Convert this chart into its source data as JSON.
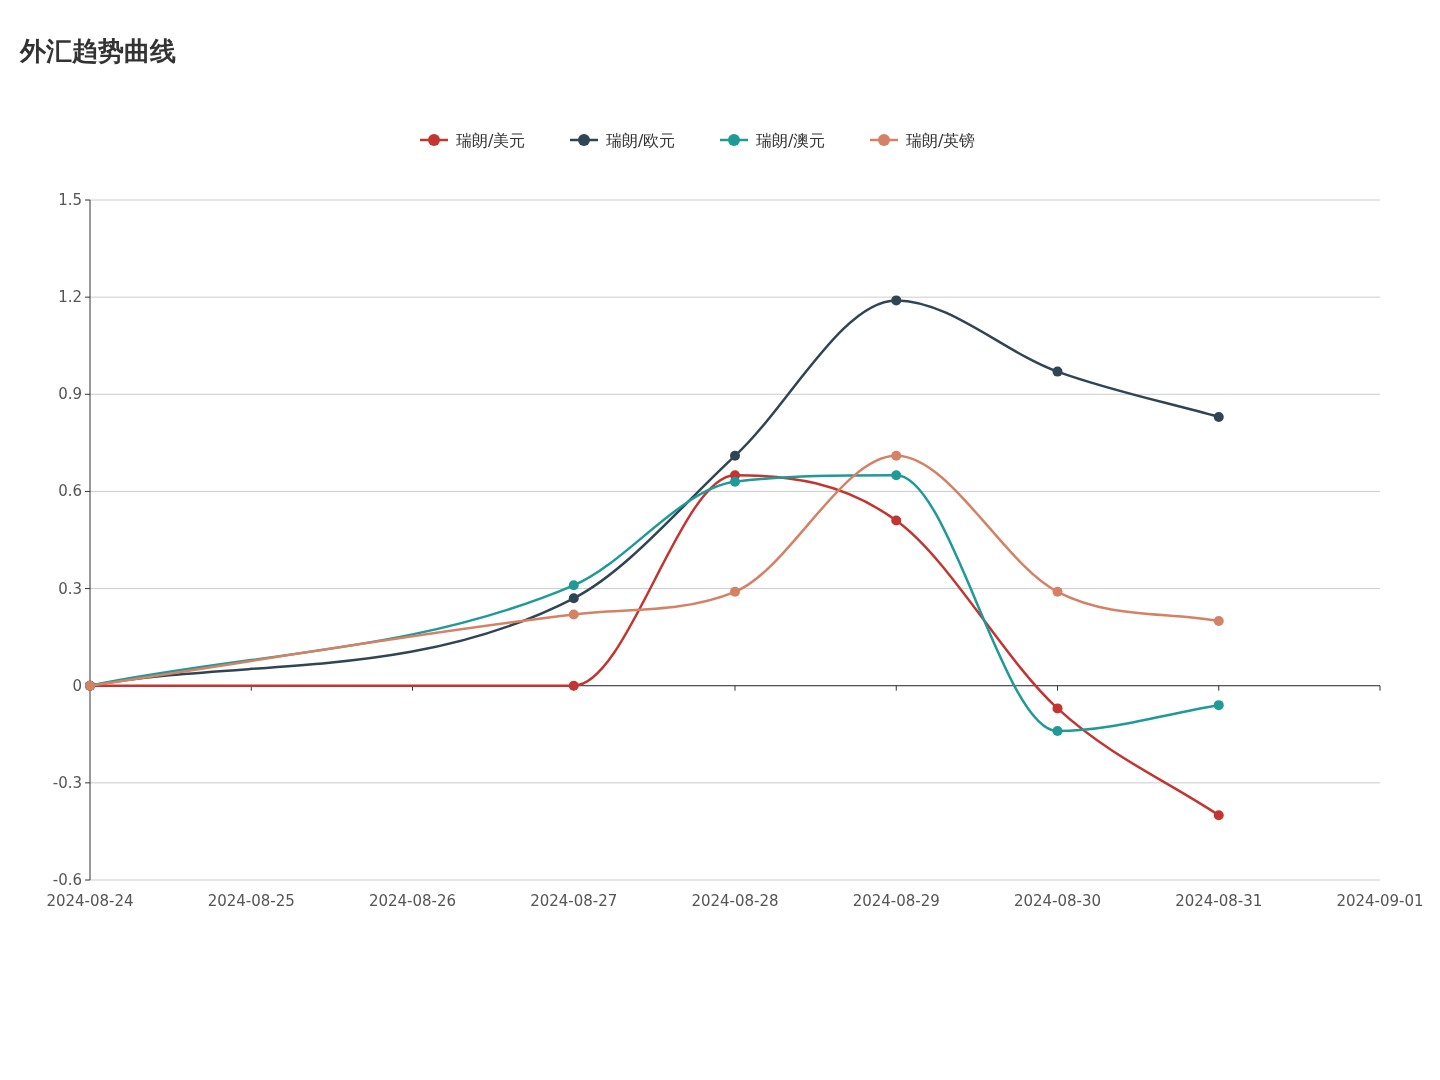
{
  "chart_data": {
    "type": "line",
    "title": "外汇趋势曲线",
    "xlim": [
      "2024-08-24",
      "2024-09-01"
    ],
    "xticks": [
      {
        "value": "2024-08-24",
        "label": "2024-08-24"
      },
      {
        "value": "2024-08-25",
        "label": "2024-08-25"
      },
      {
        "value": "2024-08-26",
        "label": "2024-08-26"
      },
      {
        "value": "2024-08-27",
        "label": "2024-08-27"
      },
      {
        "value": "2024-08-28",
        "label": "2024-08-28"
      },
      {
        "value": "2024-08-29",
        "label": "2024-08-29"
      },
      {
        "value": "2024-08-30",
        "label": "2024-08-30"
      },
      {
        "value": "2024-08-31",
        "label": "2024-08-31"
      },
      {
        "value": "2024-09-01",
        "label": "2024-09-01"
      }
    ],
    "ylim": [
      -0.6,
      1.5
    ],
    "yticks": [
      -0.6,
      -0.3,
      0,
      0.3,
      0.6,
      0.9,
      1.2,
      1.5
    ],
    "grid": "y",
    "legend": "top",
    "marker": "circle",
    "line_style": "solid",
    "x": [
      "2024-08-24",
      "2024-08-27",
      "2024-08-28",
      "2024-08-29",
      "2024-08-30",
      "2024-08-31"
    ],
    "series": [
      {
        "name": "瑞朗/美元",
        "color": "#c23531",
        "values": [
          0,
          0,
          0.65,
          0.51,
          -0.07,
          -0.4
        ]
      },
      {
        "name": "瑞朗/欧元",
        "color": "#2f4554",
        "values": [
          0,
          0.27,
          0.71,
          1.19,
          0.97,
          0.83
        ]
      },
      {
        "name": "瑞朗/澳元",
        "color": "#1f9a96",
        "values": [
          0,
          0.31,
          0.63,
          0.65,
          -0.14,
          -0.06
        ]
      },
      {
        "name": "瑞朗/英镑",
        "color": "#d48265",
        "values": [
          0,
          0.22,
          0.29,
          0.71,
          0.29,
          0.2
        ]
      }
    ]
  }
}
